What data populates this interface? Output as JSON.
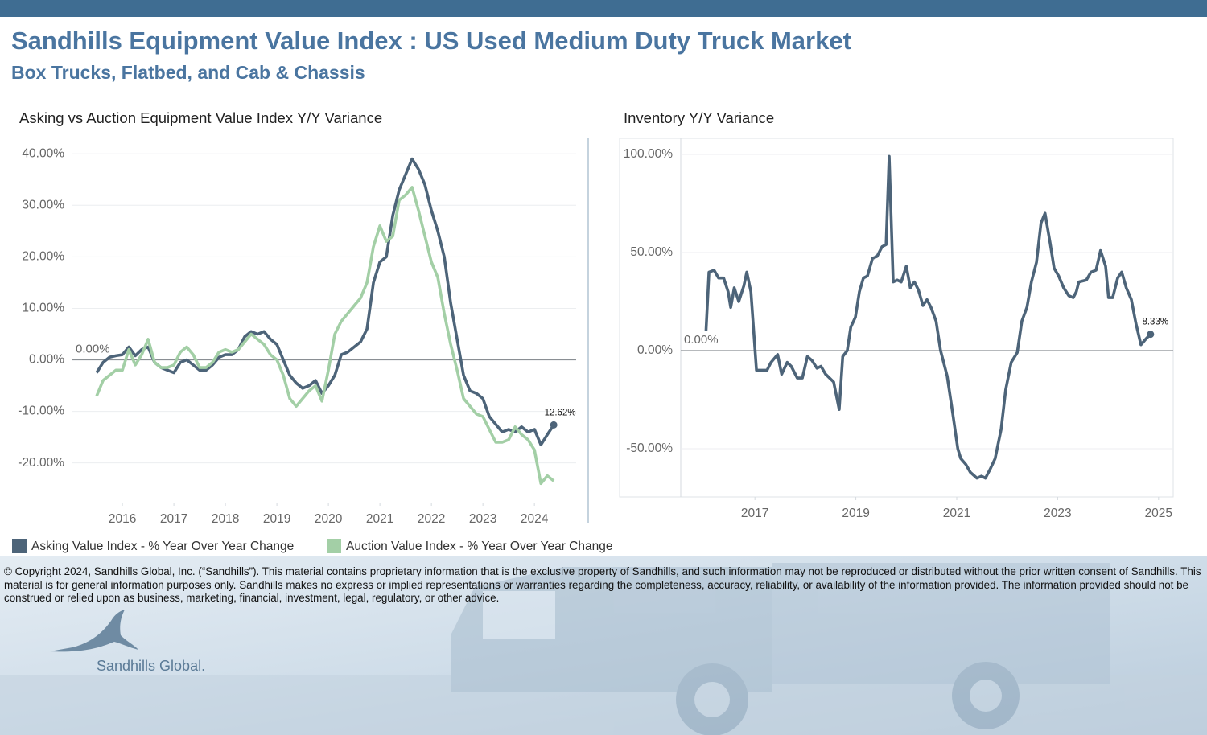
{
  "header": {
    "title": "Sandhills Equipment Value Index : US Used Medium Duty Truck Market",
    "subtitle": "Box Trucks, Flatbed, and Cab & Chassis"
  },
  "chart_data": [
    {
      "type": "line",
      "title": "Asking vs Auction Equipment Value Index Y/Y Variance",
      "x": [
        2015.5,
        2015.625,
        2015.75,
        2015.875,
        2016,
        2016.125,
        2016.25,
        2016.375,
        2016.5,
        2016.625,
        2016.75,
        2016.875,
        2017,
        2017.125,
        2017.25,
        2017.375,
        2017.5,
        2017.625,
        2017.75,
        2017.875,
        2018,
        2018.125,
        2018.25,
        2018.375,
        2018.5,
        2018.625,
        2018.75,
        2018.875,
        2019,
        2019.125,
        2019.25,
        2019.375,
        2019.5,
        2019.625,
        2019.75,
        2019.875,
        2020,
        2020.125,
        2020.25,
        2020.375,
        2020.5,
        2020.625,
        2020.75,
        2020.875,
        2021,
        2021.125,
        2021.25,
        2021.375,
        2021.5,
        2021.625,
        2021.75,
        2021.875,
        2022,
        2022.125,
        2022.25,
        2022.375,
        2022.5,
        2022.625,
        2022.75,
        2022.875,
        2023,
        2023.125,
        2023.25,
        2023.375,
        2023.5,
        2023.625,
        2023.75,
        2023.875,
        2024,
        2024.125,
        2024.25,
        2024.375
      ],
      "series": [
        {
          "name": "Asking Value Index - % Year Over Year Change",
          "color": "#4d6479",
          "values": [
            -2.5,
            -0.5,
            0.5,
            0.8,
            1,
            2.5,
            0.8,
            2,
            2.5,
            -0.5,
            -1.5,
            -2,
            -2.5,
            -0.5,
            0,
            -1,
            -2,
            -2,
            -1,
            0.5,
            1,
            1,
            2,
            4.5,
            5.5,
            5,
            5.5,
            4,
            3,
            0,
            -3,
            -4.5,
            -5.5,
            -5,
            -4,
            -6.5,
            -5,
            -3,
            1,
            1.5,
            2.5,
            3.5,
            6,
            15,
            19,
            20,
            28,
            33,
            36,
            39,
            37,
            34,
            29,
            25,
            20,
            11,
            4,
            -3,
            -6,
            -6.5,
            -7.5,
            -11,
            -12.5,
            -14,
            -13.5,
            -14,
            -13,
            -14,
            -13.5,
            -16.5,
            -14.5,
            -12.62
          ],
          "value_labels": [
            null,
            null,
            null,
            null,
            null,
            null,
            null,
            null,
            null,
            null,
            null,
            null,
            null,
            null,
            null,
            null,
            null,
            null,
            null,
            null,
            null,
            null,
            null,
            null,
            null,
            null,
            null,
            null,
            null,
            null,
            null,
            null,
            null,
            null,
            null,
            null,
            null,
            null,
            null,
            null,
            null,
            null,
            null,
            null,
            null,
            null,
            null,
            null,
            null,
            null,
            null,
            null,
            null,
            null,
            null,
            null,
            null,
            null,
            null,
            null,
            null,
            null,
            null,
            null,
            null,
            null,
            null,
            null,
            null,
            null,
            null,
            "-12.62%"
          ]
        },
        {
          "name": "Auction Value Index - % Year Over Year Change",
          "color": "#a3cfa6",
          "values": [
            -7,
            -4,
            -3,
            -2,
            -2,
            2,
            -1,
            1,
            4,
            -0.5,
            -1.5,
            -1.5,
            -1,
            1.5,
            2.5,
            1,
            -1.5,
            -1.5,
            -0.5,
            1.5,
            2,
            1.5,
            2,
            3.5,
            5,
            4,
            3,
            1,
            0,
            -3,
            -7.5,
            -9,
            -7.5,
            -6,
            -5,
            -8,
            -2,
            5,
            7.5,
            9,
            10.5,
            12,
            15,
            22,
            26,
            23,
            24,
            31,
            32,
            33.5,
            29,
            24,
            19,
            16,
            9,
            3,
            -2,
            -7.5,
            -9,
            -10.5,
            -11,
            -13.5,
            -16,
            -16,
            -15.5,
            -13,
            -14.5,
            -15.5,
            -17.5,
            -24,
            -22.5,
            -23.5
          ]
        }
      ],
      "xlim": [
        2015.03,
        2024.81
      ],
      "xticks": [
        2016,
        2017,
        2018,
        2019,
        2020,
        2021,
        2022,
        2023,
        2024
      ],
      "ylim": [
        -27.7,
        43
      ],
      "yticks": [
        {
          "value": -20,
          "label": "-20.00%"
        },
        {
          "value": -10,
          "label": "-10.00%"
        },
        {
          "value": 0,
          "label": "0.00%"
        },
        {
          "value": 10,
          "label": "10.00%"
        },
        {
          "value": 20,
          "label": "20.00%"
        },
        {
          "value": 30,
          "label": "30.00%"
        },
        {
          "value": 40,
          "label": "40.00%"
        }
      ],
      "reference_line": {
        "value": 0,
        "label": "0.00%"
      },
      "grid": true,
      "frame": false
    },
    {
      "type": "line",
      "title": "Inventory Y/Y Variance",
      "x": [
        2016.03,
        2016.09,
        2016.19,
        2016.28,
        2016.38,
        2016.47,
        2016.52,
        2016.59,
        2016.68,
        2016.78,
        2016.84,
        2016.92,
        2017.03,
        2017.13,
        2017.24,
        2017.32,
        2017.45,
        2017.53,
        2017.64,
        2017.72,
        2017.84,
        2017.94,
        2018.04,
        2018.13,
        2018.23,
        2018.31,
        2018.4,
        2018.56,
        2018.67,
        2018.74,
        2018.83,
        2018.9,
        2018.99,
        2019.07,
        2019.15,
        2019.23,
        2019.33,
        2019.42,
        2019.52,
        2019.6,
        2019.66,
        2019.74,
        2019.82,
        2019.9,
        2020,
        2020.08,
        2020.16,
        2020.24,
        2020.33,
        2020.41,
        2020.49,
        2020.59,
        2020.68,
        2020.81,
        2020.92,
        2021.02,
        2021.08,
        2021.18,
        2021.27,
        2021.4,
        2021.49,
        2021.57,
        2021.67,
        2021.76,
        2021.88,
        2021.97,
        2022.08,
        2022.2,
        2022.29,
        2022.39,
        2022.48,
        2022.58,
        2022.67,
        2022.75,
        2022.85,
        2022.93,
        2023.02,
        2023.12,
        2023.22,
        2023.31,
        2023.37,
        2023.42,
        2023.57,
        2023.66,
        2023.76,
        2023.85,
        2023.95,
        2024.01,
        2024.09,
        2024.19,
        2024.27,
        2024.36,
        2024.46,
        2024.55,
        2024.65,
        2024.75,
        2024.84
      ],
      "series": [
        {
          "name": "Inventory",
          "color": "#4d6479",
          "values": [
            10,
            40,
            41,
            37,
            37,
            30,
            22,
            32,
            25,
            33,
            40,
            30,
            -10,
            -10,
            -10,
            -6,
            -2,
            -12,
            -6,
            -8,
            -14,
            -14,
            -3,
            -5,
            -9,
            -8,
            -12,
            -16,
            -30,
            -3,
            0,
            12,
            17,
            30,
            37,
            38,
            47,
            48,
            53,
            54,
            99,
            35,
            36,
            35,
            43,
            32,
            35,
            31,
            23,
            26,
            22,
            15,
            0,
            -13,
            -32,
            -50,
            -55,
            -58,
            -62,
            -65,
            -64,
            -65,
            -60,
            -55,
            -40,
            -20,
            -6,
            -1,
            15,
            22,
            35,
            45,
            65,
            70,
            55,
            42,
            38,
            32,
            28,
            27,
            30,
            35,
            36,
            40,
            41,
            51,
            43,
            27,
            27,
            37,
            40,
            32,
            26,
            14,
            3,
            6,
            8.33
          ],
          "value_labels": [
            null,
            null,
            null,
            null,
            null,
            null,
            null,
            null,
            null,
            null,
            null,
            null,
            null,
            null,
            null,
            null,
            null,
            null,
            null,
            null,
            null,
            null,
            null,
            null,
            null,
            null,
            null,
            null,
            null,
            null,
            null,
            null,
            null,
            null,
            null,
            null,
            null,
            null,
            null,
            null,
            null,
            null,
            null,
            null,
            null,
            null,
            null,
            null,
            null,
            null,
            null,
            null,
            null,
            null,
            null,
            null,
            null,
            null,
            null,
            null,
            null,
            null,
            null,
            null,
            null,
            null,
            null,
            null,
            null,
            null,
            null,
            null,
            null,
            null,
            null,
            null,
            null,
            null,
            null,
            null,
            null,
            null,
            null,
            null,
            null,
            null,
            null,
            null,
            null,
            null,
            null,
            null,
            null,
            null,
            null,
            null,
            "8.33%"
          ]
        }
      ],
      "xlim": [
        2015.53,
        2025.29
      ],
      "xticks": [
        2017,
        2019,
        2021,
        2023,
        2025
      ],
      "ylim": [
        -74.6,
        108.2
      ],
      "yticks": [
        {
          "value": -50,
          "label": "-50.00%"
        },
        {
          "value": 0,
          "label": "0.00%"
        },
        {
          "value": 50,
          "label": "50.00%"
        },
        {
          "value": 100,
          "label": "100.00%"
        }
      ],
      "reference_line": {
        "value": 0,
        "label": "0.00%"
      },
      "grid": true,
      "frame": true
    }
  ],
  "footer": {
    "copyright": "© Copyright 2024, Sandhills Global, Inc. (“Sandhills”). This material contains proprietary information that is the exclusive property of Sandhills, and such information may not be reproduced or distributed without the prior written consent of Sandhills. This material is for general information purposes only. Sandhills makes no express or implied representations or warranties regarding the completeness, accuracy, reliability, or availability of the information provided. The information provided should not be construed or relied upon as business, marketing, financial, investment, legal, regulatory, or other advice.",
    "logo": "Sandhills Global."
  }
}
